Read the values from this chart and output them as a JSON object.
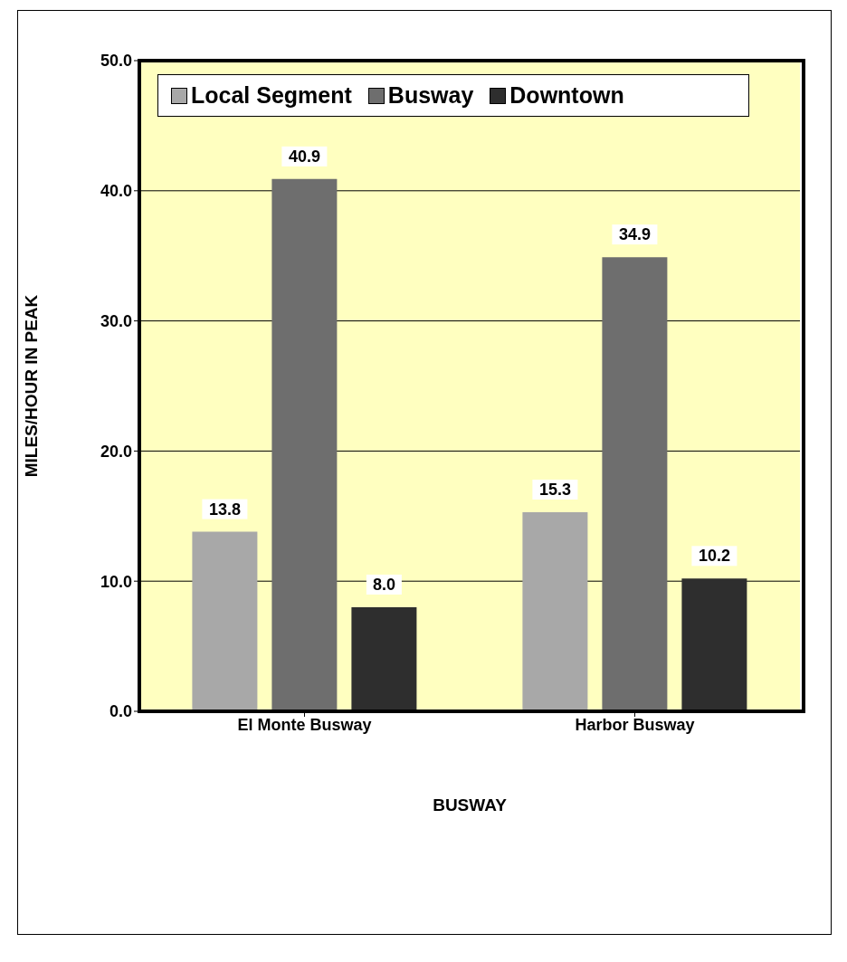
{
  "chart_data": {
    "type": "bar",
    "xlabel": "BUSWAY",
    "ylabel": "MILES/HOUR IN PEAK",
    "categories": [
      "El Monte Busway",
      "Harbor Busway"
    ],
    "series": [
      {
        "name": "Local Segment",
        "color": "#a8a8a8",
        "values": [
          13.8,
          15.3
        ],
        "value_labels": [
          "13.8",
          "15.3"
        ]
      },
      {
        "name": "Busway",
        "color": "#6e6e6e",
        "values": [
          40.9,
          34.9
        ],
        "value_labels": [
          "40.9",
          "34.9"
        ]
      },
      {
        "name": "Downtown",
        "color": "#2e2e2e",
        "values": [
          8.0,
          10.2
        ],
        "value_labels": [
          "8.0",
          "10.2"
        ]
      }
    ],
    "ylim": [
      0,
      50
    ],
    "yticks": [
      {
        "value": 0,
        "label": "0.0"
      },
      {
        "value": 10,
        "label": "10.0"
      },
      {
        "value": 20,
        "label": "20.0"
      },
      {
        "value": 30,
        "label": "30.0"
      },
      {
        "value": 40,
        "label": "40.0"
      },
      {
        "value": 50,
        "label": "50.0"
      }
    ],
    "grid": "y",
    "legend": "top"
  }
}
